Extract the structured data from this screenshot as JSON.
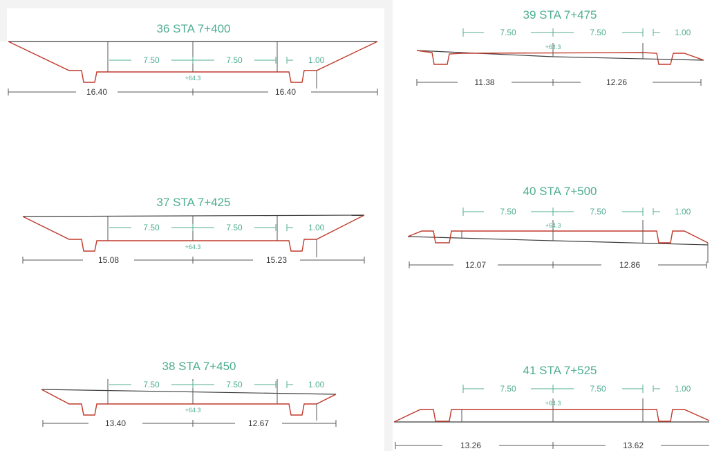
{
  "sections": [
    {
      "title": "36 STA 7+400",
      "lane_left": "7.50",
      "lane_right": "7.50",
      "shoulder": "1.00",
      "elevation": "+64.3",
      "offset_left": "16.40",
      "offset_right": "16.40"
    },
    {
      "title": "37 STA 7+425",
      "lane_left": "7.50",
      "lane_right": "7.50",
      "shoulder": "1.00",
      "elevation": "+64.3",
      "offset_left": "15.08",
      "offset_right": "15.23"
    },
    {
      "title": "38 STA 7+450",
      "lane_left": "7.50",
      "lane_right": "7.50",
      "shoulder": "1.00",
      "elevation": "+64.3",
      "offset_left": "13.40",
      "offset_right": "12.67"
    },
    {
      "title": "39 STA 7+475",
      "lane_left": "7.50",
      "lane_right": "7.50",
      "shoulder": "1.00",
      "elevation": "+64.3",
      "offset_left": "11.38",
      "offset_right": "12.26"
    },
    {
      "title": "40 STA 7+500",
      "lane_left": "7.50",
      "lane_right": "7.50",
      "shoulder": "1.00",
      "elevation": "+64.3",
      "offset_left": "12.07",
      "offset_right": "12.86"
    },
    {
      "title": "41 STA 7+525",
      "lane_left": "7.50",
      "lane_right": "7.50",
      "shoulder": "1.00",
      "elevation": "+64.3",
      "offset_left": "13.26",
      "offset_right": "13.62"
    }
  ],
  "colors": {
    "design_profile": "#c0392b",
    "ground_line": "#3c3c3c",
    "annotation": "#4fae92",
    "dimension": "#555555"
  }
}
